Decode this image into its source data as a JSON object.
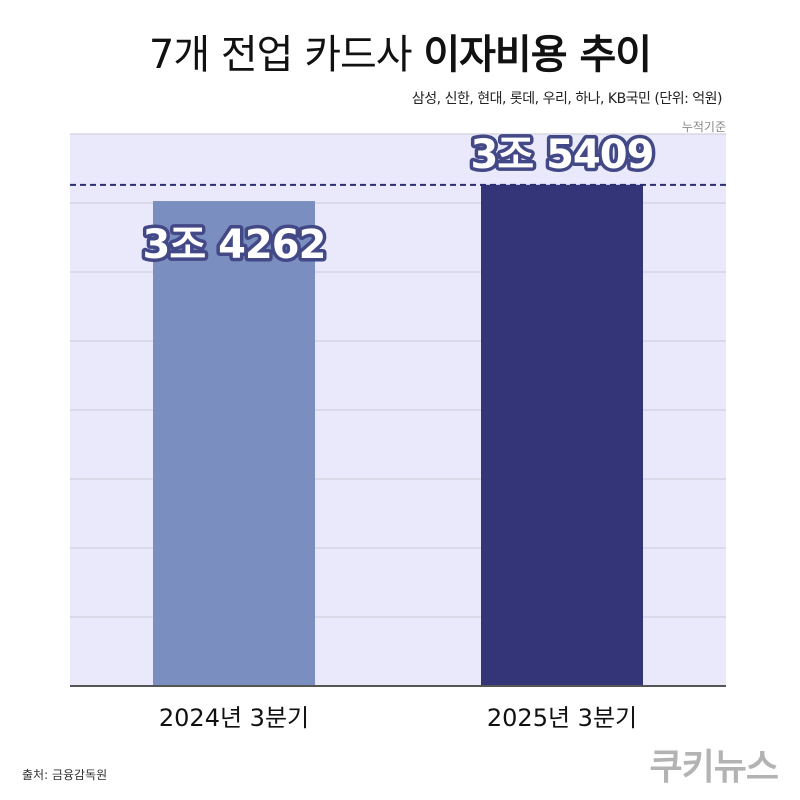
{
  "header": {
    "title_light": "7개 전업 카드사",
    "title_bold": "이자비용 추이",
    "subtitle": "삼성, 신한, 현대, 롯데, 우리, 하나, KB국민 (단위: 억원)",
    "basis_note": "누적기준"
  },
  "chart_data": {
    "type": "bar",
    "categories": [
      "2024년 3분기",
      "2025년 3분기"
    ],
    "values": [
      34262,
      35409
    ],
    "data_labels": [
      "3조 4262",
      "3조 5409"
    ],
    "title": "7개 전업 카드사 이자비용 추이",
    "xlabel": "",
    "ylabel": "",
    "unit": "억원",
    "ylim": [
      0,
      39000
    ],
    "grid": true,
    "reference_line": 35409,
    "colors": {
      "bars": [
        "#7a8fbf",
        "#343579"
      ],
      "plot_background": "#e9e9fb",
      "gridline": "#c9c9d6",
      "reference_line": "#2b2d73",
      "label_text": "#ffffff",
      "label_stroke": "#434887"
    }
  },
  "footer": {
    "source": "출처: 금융감독원",
    "logo": "쿠키뉴스"
  }
}
